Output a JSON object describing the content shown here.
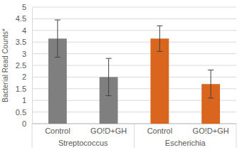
{
  "chart_data": {
    "type": "bar",
    "y_label": "Bacterial Read Counts*",
    "categories": [
      "Control",
      "GO!D+GH"
    ],
    "series": [
      {
        "name": "Streptococcus",
        "color": "#7f7f7f",
        "values": [
          3.65,
          2.0
        ],
        "errors": [
          0.8,
          0.8
        ]
      },
      {
        "name": "Escherichia",
        "color": "#d9651e",
        "values": [
          3.65,
          1.7
        ],
        "errors": [
          0.55,
          0.6
        ]
      }
    ],
    "ylim": [
      0,
      5
    ],
    "yticks": [
      0,
      0.5,
      1,
      1.5,
      2,
      2.5,
      3,
      3.5,
      4,
      4.5,
      5
    ],
    "grid": true
  }
}
